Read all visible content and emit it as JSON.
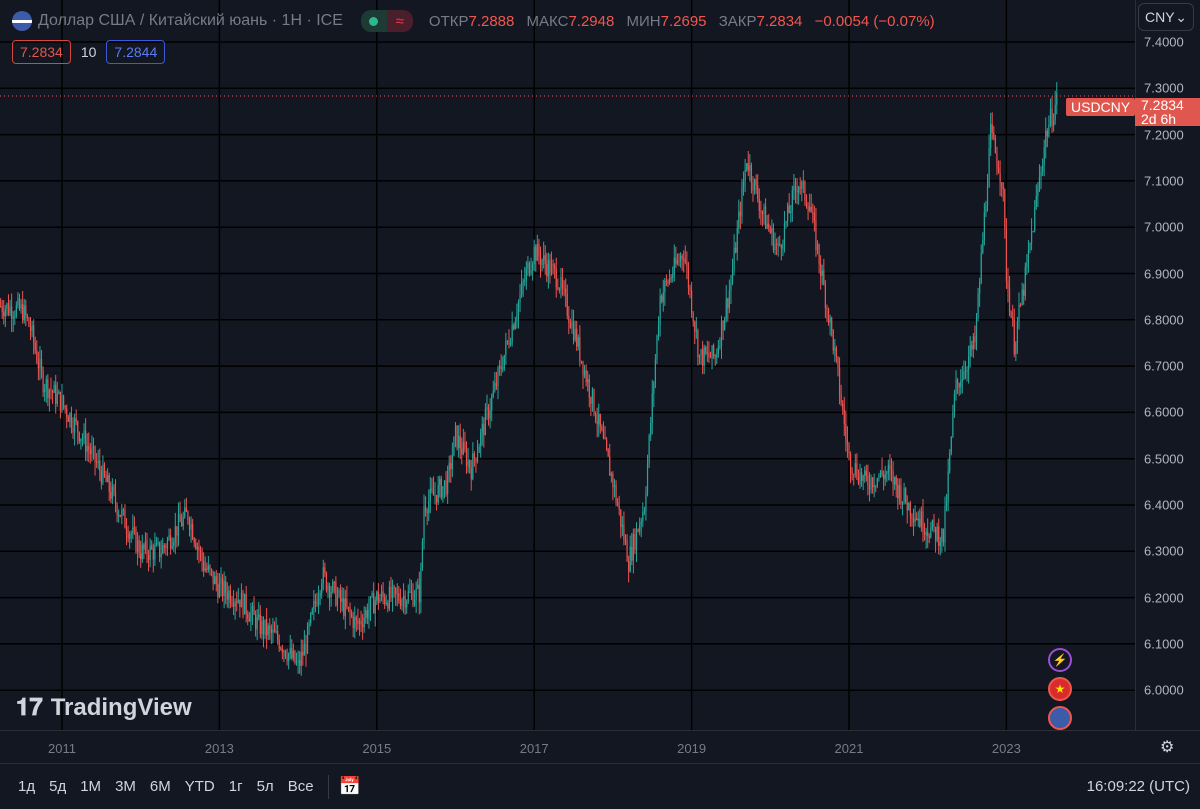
{
  "header": {
    "title": "Доллар США / Китайский юань · 1H · ICE",
    "open_label": "ОТКР",
    "open": "7.2888",
    "high_label": "МАКС",
    "high": "7.2948",
    "low_label": "МИН",
    "low": "7.2695",
    "close_label": "ЗАКР",
    "close": "7.2834",
    "change": "−0.0054 (−0.07%)",
    "bid": "7.2834",
    "spread": "10",
    "ask": "7.2844",
    "currency": "CNY"
  },
  "price_tag": {
    "symbol": "USDCNY",
    "price": "7.2834",
    "countdown": "2d 6h"
  },
  "logo": "TradingView",
  "time_axis": [
    "2011",
    "2013",
    "2015",
    "2017",
    "2019",
    "2021",
    "2023"
  ],
  "range_buttons": [
    "1д",
    "5д",
    "1M",
    "3M",
    "6M",
    "YTD",
    "1г",
    "5л",
    "Все"
  ],
  "clock": "16:09:22 (UTC)",
  "colors": {
    "up": "#26a69a",
    "down": "#ef5350",
    "bg": "#131722"
  },
  "chart_data": {
    "type": "candlestick",
    "symbol": "USDCNY",
    "price_ticks": [
      "7.4000",
      "7.3000",
      "7.2000",
      "7.1000",
      "7.0000",
      "6.9000",
      "6.8000",
      "6.7000",
      "6.6000",
      "6.5000",
      "6.4000",
      "6.3000",
      "6.2000",
      "6.1000",
      "6.0000"
    ],
    "ylim": [
      6.0,
      7.4
    ],
    "xlim": [
      2010.22,
      2024.6
    ],
    "approx_close": [
      [
        2010.22,
        6.83
      ],
      [
        2010.5,
        6.82
      ],
      [
        2010.6,
        6.78
      ],
      [
        2010.75,
        6.67
      ],
      [
        2011.0,
        6.62
      ],
      [
        2011.25,
        6.55
      ],
      [
        2011.5,
        6.47
      ],
      [
        2011.75,
        6.38
      ],
      [
        2012.0,
        6.3
      ],
      [
        2012.25,
        6.3
      ],
      [
        2012.5,
        6.36
      ],
      [
        2012.6,
        6.38
      ],
      [
        2012.8,
        6.27
      ],
      [
        2013.0,
        6.22
      ],
      [
        2013.25,
        6.2
      ],
      [
        2013.5,
        6.14
      ],
      [
        2013.75,
        6.11
      ],
      [
        2014.0,
        6.05
      ],
      [
        2014.1,
        6.1
      ],
      [
        2014.3,
        6.25
      ],
      [
        2014.5,
        6.2
      ],
      [
        2014.75,
        6.14
      ],
      [
        2015.0,
        6.2
      ],
      [
        2015.25,
        6.2
      ],
      [
        2015.55,
        6.21
      ],
      [
        2015.6,
        6.4
      ],
      [
        2015.9,
        6.45
      ],
      [
        2016.0,
        6.55
      ],
      [
        2016.2,
        6.48
      ],
      [
        2016.5,
        6.65
      ],
      [
        2016.9,
        6.9
      ],
      [
        2017.0,
        6.95
      ],
      [
        2017.3,
        6.89
      ],
      [
        2017.5,
        6.78
      ],
      [
        2017.75,
        6.62
      ],
      [
        2018.0,
        6.45
      ],
      [
        2018.2,
        6.28
      ],
      [
        2018.4,
        6.4
      ],
      [
        2018.6,
        6.85
      ],
      [
        2018.9,
        6.95
      ],
      [
        2019.1,
        6.72
      ],
      [
        2019.3,
        6.72
      ],
      [
        2019.5,
        6.88
      ],
      [
        2019.7,
        7.15
      ],
      [
        2019.9,
        7.03
      ],
      [
        2020.1,
        6.95
      ],
      [
        2020.35,
        7.1
      ],
      [
        2020.5,
        7.05
      ],
      [
        2020.8,
        6.75
      ],
      [
        2021.0,
        6.5
      ],
      [
        2021.2,
        6.45
      ],
      [
        2021.5,
        6.47
      ],
      [
        2021.75,
        6.4
      ],
      [
        2022.0,
        6.35
      ],
      [
        2022.2,
        6.33
      ],
      [
        2022.35,
        6.65
      ],
      [
        2022.6,
        6.75
      ],
      [
        2022.8,
        7.2
      ],
      [
        2022.95,
        7.1
      ],
      [
        2023.0,
        6.9
      ],
      [
        2023.1,
        6.75
      ],
      [
        2023.25,
        6.9
      ],
      [
        2023.5,
        7.2
      ],
      [
        2023.65,
        7.28
      ]
    ]
  }
}
